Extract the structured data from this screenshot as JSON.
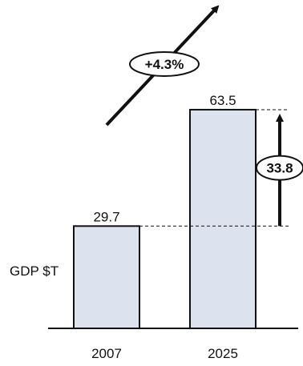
{
  "chart_data": {
    "type": "bar",
    "ylabel": "GDP $T",
    "categories": [
      "2007",
      "2025"
    ],
    "values": [
      29.7,
      63.5
    ],
    "value_labels": [
      "29.7",
      "63.5"
    ],
    "difference_label": "33.8",
    "growth_label": "+4.3%",
    "grid": false,
    "legend": "none",
    "colors": {
      "bar_fill": "#dde3ee",
      "bar_stroke": "#111111",
      "arrow": "#111111",
      "text": "#111111"
    }
  }
}
